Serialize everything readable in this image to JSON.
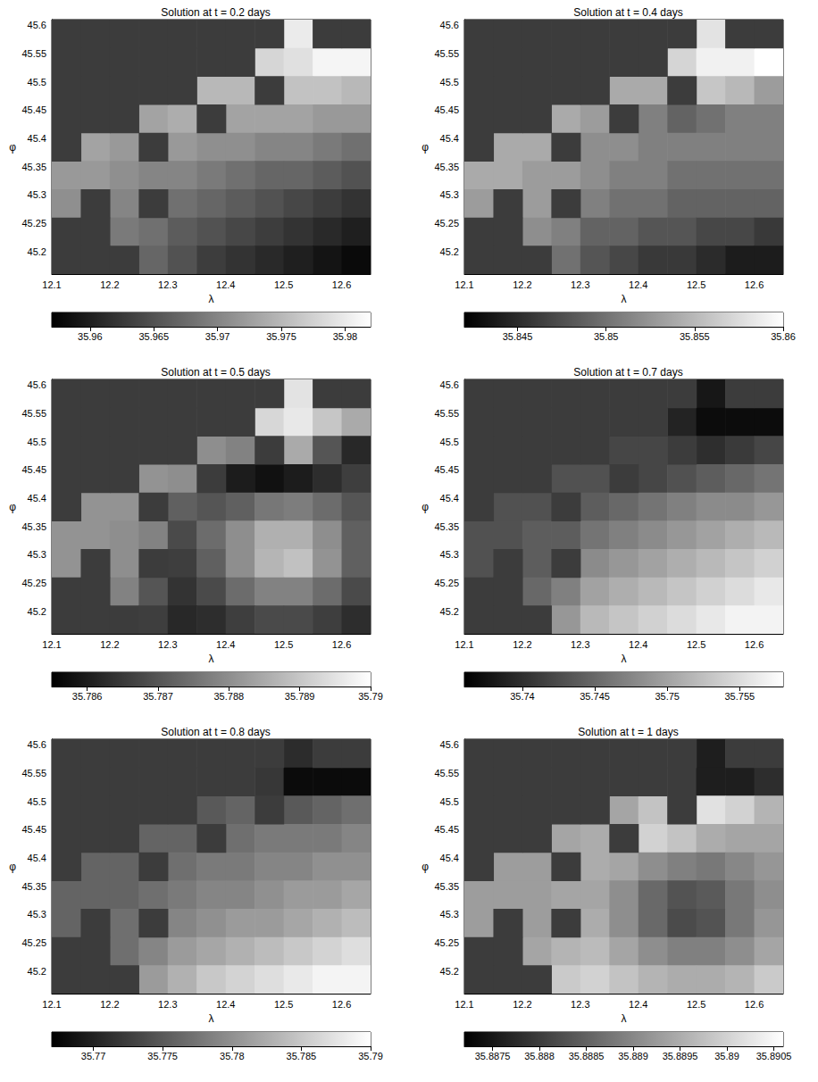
{
  "chart_data": [
    {
      "type": "heatmap",
      "title": "Solution at t = 0.2 days",
      "x_label": "λ",
      "y_label": "φ",
      "xlim": [
        12.1,
        12.65
      ],
      "ylim": [
        45.16,
        45.61
      ],
      "xticks": [
        12.1,
        12.2,
        12.3,
        12.4,
        12.5,
        12.6
      ],
      "yticks": [
        45.2,
        45.25,
        45.3,
        45.35,
        45.4,
        45.45,
        45.5,
        45.55,
        45.6
      ],
      "x": [
        12.125,
        12.175,
        12.225,
        12.275,
        12.325,
        12.375,
        12.425,
        12.475,
        12.525,
        12.575,
        12.625
      ],
      "y": [
        45.585,
        45.535,
        45.485,
        45.435,
        45.385,
        45.335,
        45.285,
        45.235,
        45.185
      ],
      "values": [
        [
          null,
          null,
          null,
          null,
          null,
          null,
          null,
          null,
          35.98,
          null,
          null
        ],
        [
          null,
          null,
          null,
          null,
          null,
          null,
          null,
          35.978,
          35.979,
          35.981,
          35.981
        ],
        [
          null,
          null,
          null,
          null,
          null,
          35.975,
          35.975,
          null,
          35.976,
          35.976,
          35.975
        ],
        [
          null,
          null,
          null,
          35.973,
          35.974,
          null,
          35.973,
          35.973,
          35.973,
          35.972,
          35.972
        ],
        [
          null,
          35.973,
          35.972,
          null,
          35.972,
          35.971,
          35.971,
          35.97,
          35.97,
          35.969,
          35.968
        ],
        [
          35.972,
          35.972,
          35.971,
          35.97,
          35.97,
          35.969,
          35.968,
          35.967,
          35.967,
          35.966,
          35.965
        ],
        [
          35.971,
          null,
          35.97,
          null,
          35.968,
          35.967,
          35.966,
          35.965,
          35.964,
          35.963,
          35.962
        ],
        [
          null,
          null,
          35.969,
          35.968,
          35.966,
          35.965,
          35.964,
          35.963,
          35.962,
          35.961,
          35.96
        ],
        [
          null,
          null,
          null,
          35.967,
          35.965,
          35.963,
          35.962,
          35.961,
          35.96,
          35.959,
          35.958
        ]
      ],
      "colorbar": {
        "range": [
          35.957,
          35.982
        ],
        "ticks": [
          35.96,
          35.965,
          35.97,
          35.975,
          35.98
        ]
      }
    },
    {
      "type": "heatmap",
      "title": "Solution at t = 0.4 days",
      "x_label": "λ",
      "y_label": "φ",
      "xlim": [
        12.1,
        12.65
      ],
      "ylim": [
        45.16,
        45.61
      ],
      "xticks": [
        12.1,
        12.2,
        12.3,
        12.4,
        12.5,
        12.6
      ],
      "yticks": [
        45.2,
        45.25,
        45.3,
        45.35,
        45.4,
        45.45,
        45.5,
        45.55,
        45.6
      ],
      "x": [
        12.125,
        12.175,
        12.225,
        12.275,
        12.325,
        12.375,
        12.425,
        12.475,
        12.525,
        12.575,
        12.625
      ],
      "y": [
        45.585,
        45.535,
        45.485,
        45.435,
        45.385,
        45.335,
        45.285,
        45.235,
        45.185
      ],
      "values": [
        [
          null,
          null,
          null,
          null,
          null,
          null,
          null,
          null,
          35.858,
          null,
          null
        ],
        [
          null,
          null,
          null,
          null,
          null,
          null,
          null,
          35.857,
          35.859,
          35.859,
          35.86
        ],
        [
          null,
          null,
          null,
          null,
          null,
          35.854,
          35.854,
          null,
          35.856,
          35.855,
          35.853
        ],
        [
          null,
          null,
          null,
          35.854,
          35.853,
          null,
          35.851,
          35.849,
          35.85,
          35.851,
          35.851
        ],
        [
          null,
          35.854,
          35.854,
          null,
          35.852,
          35.852,
          35.851,
          35.851,
          35.851,
          35.851,
          35.851
        ],
        [
          35.854,
          35.854,
          35.853,
          35.853,
          35.852,
          35.851,
          35.851,
          35.85,
          35.85,
          35.85,
          35.85
        ],
        [
          35.853,
          null,
          35.853,
          null,
          35.851,
          35.85,
          35.85,
          35.849,
          35.849,
          35.849,
          35.849
        ],
        [
          null,
          null,
          35.852,
          35.851,
          35.849,
          35.849,
          35.848,
          35.848,
          35.847,
          35.847,
          35.846
        ],
        [
          null,
          null,
          null,
          35.85,
          35.848,
          35.847,
          35.846,
          35.846,
          35.845,
          35.844,
          35.844
        ]
      ],
      "colorbar": {
        "range": [
          35.842,
          35.86
        ],
        "ticks": [
          35.845,
          35.85,
          35.855,
          35.86
        ]
      }
    },
    {
      "type": "heatmap",
      "title": "Solution at t = 0.5 days",
      "x_label": "λ",
      "y_label": "φ",
      "xlim": [
        12.1,
        12.65
      ],
      "ylim": [
        45.16,
        45.61
      ],
      "xticks": [
        12.1,
        12.2,
        12.3,
        12.4,
        12.5,
        12.6
      ],
      "yticks": [
        45.2,
        45.25,
        45.3,
        45.35,
        45.4,
        45.45,
        45.5,
        45.55,
        45.6
      ],
      "x": [
        12.125,
        12.175,
        12.225,
        12.275,
        12.325,
        12.375,
        12.425,
        12.475,
        12.525,
        12.575,
        12.625
      ],
      "y": [
        45.585,
        45.535,
        45.485,
        45.435,
        45.385,
        45.335,
        45.285,
        45.235,
        45.185
      ],
      "values": [
        [
          null,
          null,
          null,
          null,
          null,
          null,
          null,
          null,
          35.7895,
          null,
          null
        ],
        [
          null,
          null,
          null,
          null,
          null,
          null,
          null,
          35.7893,
          35.7896,
          35.789,
          35.7885
        ],
        [
          null,
          null,
          null,
          null,
          null,
          35.788,
          35.7878,
          null,
          35.7885,
          35.787,
          35.7862
        ],
        [
          null,
          null,
          null,
          35.7881,
          35.788,
          null,
          35.786,
          35.7858,
          35.786,
          35.7863,
          35.7866
        ],
        [
          null,
          35.7881,
          35.7881,
          null,
          35.7872,
          35.787,
          35.7872,
          35.7876,
          35.7877,
          35.7874,
          35.787
        ],
        [
          35.7881,
          35.7881,
          35.788,
          35.7878,
          35.7868,
          35.7874,
          35.788,
          35.7886,
          35.7886,
          35.788,
          35.7872
        ],
        [
          35.7881,
          null,
          35.788,
          null,
          35.7866,
          35.7872,
          35.788,
          35.7887,
          35.7889,
          35.7881,
          35.7872
        ],
        [
          null,
          null,
          35.7878,
          35.787,
          35.7864,
          35.7868,
          35.7874,
          35.7878,
          35.7878,
          35.7874,
          35.7868
        ],
        [
          null,
          null,
          null,
          35.7866,
          35.7862,
          35.7863,
          35.7866,
          35.7868,
          35.7868,
          35.7866,
          35.7863
        ]
      ],
      "colorbar": {
        "range": [
          35.7855,
          35.79
        ],
        "ticks": [
          35.786,
          35.787,
          35.788,
          35.789,
          35.79
        ]
      }
    },
    {
      "type": "heatmap",
      "title": "Solution at t = 0.7 days",
      "x_label": "λ",
      "y_label": "φ",
      "xlim": [
        12.1,
        12.65
      ],
      "ylim": [
        45.16,
        45.61
      ],
      "xticks": [
        12.1,
        12.2,
        12.3,
        12.4,
        12.5,
        12.6
      ],
      "yticks": [
        45.2,
        45.25,
        45.3,
        45.35,
        45.4,
        45.45,
        45.5,
        45.55,
        45.6
      ],
      "x": [
        12.125,
        12.175,
        12.225,
        12.275,
        12.325,
        12.375,
        12.425,
        12.475,
        12.525,
        12.575,
        12.625
      ],
      "y": [
        45.585,
        45.535,
        45.485,
        45.435,
        45.385,
        45.335,
        45.285,
        45.235,
        45.185
      ],
      "values": [
        [
          null,
          null,
          null,
          null,
          null,
          null,
          null,
          null,
          35.738,
          null,
          null
        ],
        [
          null,
          null,
          null,
          null,
          null,
          null,
          null,
          35.739,
          35.737,
          35.737,
          35.737
        ],
        [
          null,
          null,
          null,
          null,
          null,
          35.742,
          35.742,
          null,
          35.74,
          35.741,
          35.742
        ],
        [
          null,
          null,
          null,
          35.743,
          35.743,
          null,
          35.742,
          35.743,
          35.744,
          35.745,
          35.746
        ],
        [
          null,
          35.743,
          35.743,
          null,
          35.744,
          35.745,
          35.746,
          35.747,
          35.748,
          35.748,
          35.749
        ],
        [
          35.743,
          35.743,
          35.744,
          35.744,
          35.746,
          35.747,
          35.748,
          35.749,
          35.75,
          35.751,
          35.752
        ],
        [
          35.743,
          null,
          35.744,
          null,
          35.748,
          35.749,
          35.75,
          35.751,
          35.752,
          35.753,
          35.754
        ],
        [
          null,
          null,
          35.745,
          35.747,
          35.75,
          35.751,
          35.752,
          35.753,
          35.754,
          35.755,
          35.756
        ],
        [
          null,
          null,
          null,
          35.749,
          35.752,
          35.753,
          35.754,
          35.755,
          35.756,
          35.757,
          35.757
        ]
      ],
      "colorbar": {
        "range": [
          35.736,
          35.758
        ],
        "ticks": [
          35.74,
          35.745,
          35.75,
          35.755
        ]
      }
    },
    {
      "type": "heatmap",
      "title": "Solution at t = 0.8 days",
      "x_label": "λ",
      "y_label": "φ",
      "xlim": [
        12.1,
        12.65
      ],
      "ylim": [
        45.16,
        45.61
      ],
      "xticks": [
        12.1,
        12.2,
        12.3,
        12.4,
        12.5,
        12.6
      ],
      "yticks": [
        45.2,
        45.25,
        45.3,
        45.35,
        45.4,
        45.45,
        45.5,
        45.55,
        45.6
      ],
      "x": [
        12.125,
        12.175,
        12.225,
        12.275,
        12.325,
        12.375,
        12.425,
        12.475,
        12.525,
        12.575,
        12.625
      ],
      "y": [
        45.585,
        45.535,
        45.485,
        45.435,
        45.385,
        45.335,
        45.285,
        45.235,
        45.185
      ],
      "values": [
        [
          null,
          null,
          null,
          null,
          null,
          null,
          null,
          null,
          35.771,
          null,
          null
        ],
        [
          null,
          null,
          null,
          null,
          null,
          null,
          null,
          35.772,
          35.768,
          35.768,
          35.768
        ],
        [
          null,
          null,
          null,
          null,
          null,
          35.775,
          35.776,
          null,
          35.775,
          35.776,
          35.777
        ],
        [
          null,
          null,
          null,
          35.776,
          35.776,
          null,
          35.777,
          35.778,
          35.778,
          35.778,
          35.779
        ],
        [
          null,
          35.776,
          35.776,
          null,
          35.777,
          35.778,
          35.778,
          35.779,
          35.779,
          35.78,
          35.78
        ],
        [
          35.776,
          35.776,
          35.776,
          35.777,
          35.778,
          35.779,
          35.779,
          35.78,
          35.781,
          35.781,
          35.782
        ],
        [
          35.776,
          null,
          35.777,
          null,
          35.779,
          35.78,
          35.781,
          35.781,
          35.782,
          35.783,
          35.784
        ],
        [
          null,
          null,
          35.777,
          35.779,
          35.781,
          35.782,
          35.783,
          35.784,
          35.785,
          35.786,
          35.787
        ],
        [
          null,
          null,
          null,
          35.781,
          35.783,
          35.785,
          35.786,
          35.787,
          35.788,
          35.789,
          35.789
        ]
      ],
      "colorbar": {
        "range": [
          35.767,
          35.79
        ],
        "ticks": [
          35.77,
          35.775,
          35.78,
          35.785,
          35.79
        ]
      }
    },
    {
      "type": "heatmap",
      "title": "Solution at t = 1 days",
      "x_label": "λ",
      "y_label": "φ",
      "xlim": [
        12.1,
        12.65
      ],
      "ylim": [
        45.16,
        45.61
      ],
      "xticks": [
        12.1,
        12.2,
        12.3,
        12.4,
        12.5,
        12.6
      ],
      "yticks": [
        45.2,
        45.25,
        45.3,
        45.35,
        45.4,
        45.45,
        45.5,
        45.55,
        45.6
      ],
      "x": [
        12.125,
        12.175,
        12.225,
        12.275,
        12.325,
        12.375,
        12.425,
        12.475,
        12.525,
        12.575,
        12.625
      ],
      "y": [
        45.585,
        45.535,
        45.485,
        45.435,
        45.385,
        45.335,
        45.285,
        45.235,
        45.185
      ],
      "values": [
        [
          null,
          null,
          null,
          null,
          null,
          null,
          null,
          null,
          35.8876,
          null,
          null
        ],
        [
          null,
          null,
          null,
          null,
          null,
          null,
          null,
          35.888,
          35.8876,
          35.8876,
          35.8878
        ],
        [
          null,
          null,
          null,
          null,
          null,
          35.8894,
          35.8898,
          null,
          35.8902,
          35.89,
          35.8896
        ],
        [
          null,
          null,
          null,
          35.8894,
          35.8895,
          null,
          35.89,
          35.8898,
          35.8895,
          35.8894,
          35.8894
        ],
        [
          null,
          35.8893,
          35.8893,
          null,
          35.8895,
          35.8894,
          35.8891,
          35.8889,
          35.8888,
          35.889,
          35.8892
        ],
        [
          35.8893,
          35.8893,
          35.8893,
          35.8894,
          35.8894,
          35.8891,
          35.8886,
          35.8883,
          35.8884,
          35.8888,
          35.8891
        ],
        [
          35.8893,
          null,
          35.8893,
          null,
          35.8895,
          35.8891,
          35.8886,
          35.8882,
          35.8883,
          35.8888,
          35.8892
        ],
        [
          null,
          null,
          35.8894,
          35.8896,
          35.8897,
          35.8894,
          35.8891,
          35.8889,
          35.8889,
          35.8891,
          35.8894
        ],
        [
          null,
          null,
          null,
          35.8899,
          35.89,
          35.8898,
          35.8896,
          35.8895,
          35.8895,
          35.8896,
          35.8899
        ]
      ],
      "colorbar": {
        "range": [
          35.8872,
          35.8906
        ],
        "ticks": [
          35.8875,
          35.888,
          35.8885,
          35.889,
          35.8895,
          35.89,
          35.8905
        ]
      }
    }
  ]
}
